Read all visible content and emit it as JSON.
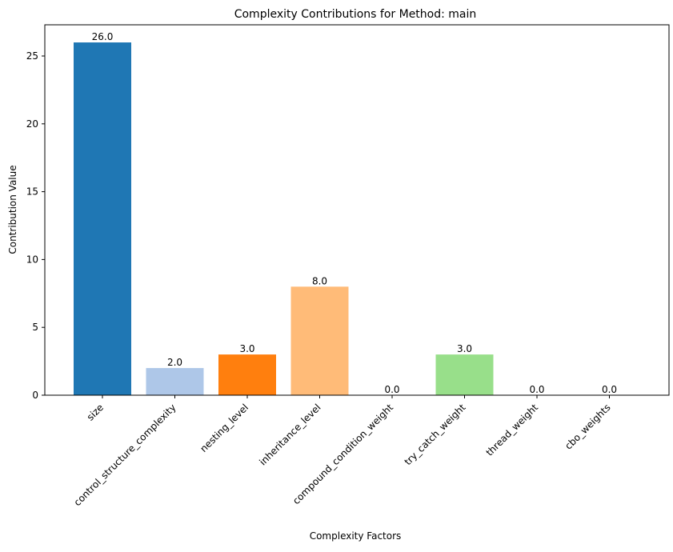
{
  "chart_data": {
    "type": "bar",
    "title": "Complexity Contributions for Method: main",
    "xlabel": "Complexity Factors",
    "ylabel": "Contribution Value",
    "categories": [
      "size",
      "control_structure_complexity",
      "nesting_level",
      "inheritance_level",
      "compound_condition_weight",
      "try_catch_weight",
      "thread_weight",
      "cbo_weights"
    ],
    "values": [
      26.0,
      2.0,
      3.0,
      8.0,
      0.0,
      3.0,
      0.0,
      0.0
    ],
    "data_labels": [
      "26.0",
      "2.0",
      "3.0",
      "8.0",
      "0.0",
      "3.0",
      "0.0",
      "0.0"
    ],
    "colors": [
      "#1f77b4",
      "#aec7e8",
      "#ff7f0e",
      "#ffbb78",
      "#2ca02c",
      "#98df8a",
      "#d62728",
      "#ff9896"
    ],
    "ylim": [
      0,
      27.3
    ],
    "yticks": [
      0,
      5,
      10,
      15,
      20,
      25
    ],
    "ytick_labels": [
      "0",
      "5",
      "10",
      "15",
      "20",
      "25"
    ],
    "grid": false,
    "legend": "none"
  }
}
